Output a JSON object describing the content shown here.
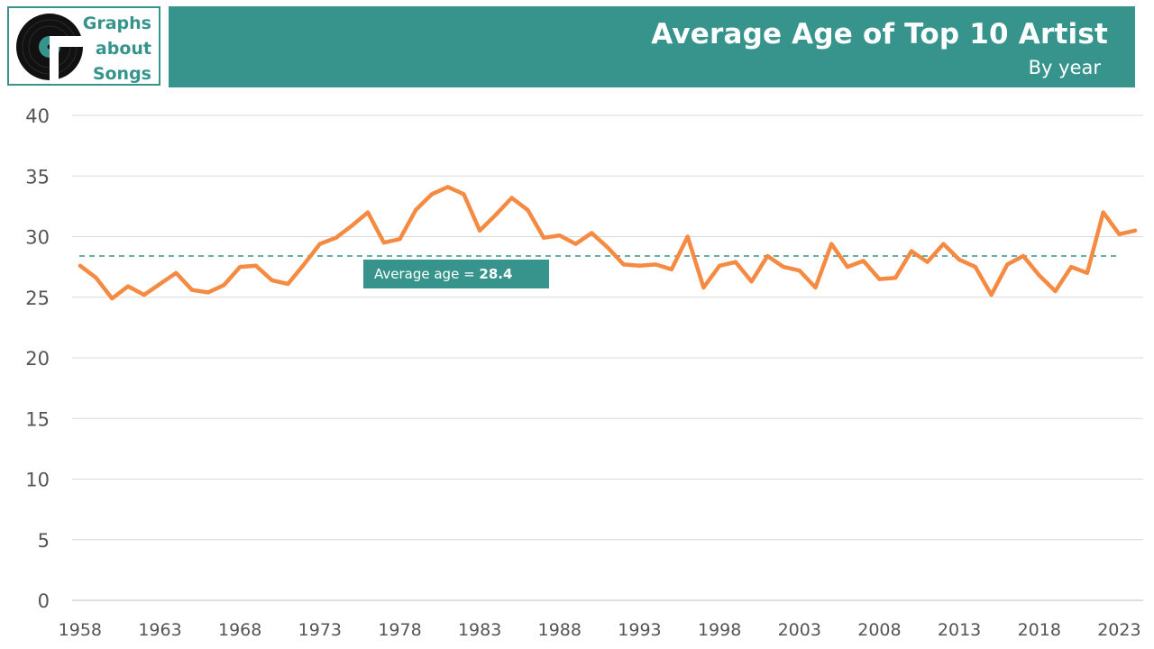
{
  "logo": {
    "lines": [
      "Graphs",
      "about",
      "Songs"
    ]
  },
  "header": {
    "title": "Average Age of Top 10 Artist",
    "subtitle": "By year"
  },
  "annotation": {
    "text": "Average age = ",
    "value": "28.4"
  },
  "colors": {
    "brand": "#36948c",
    "line": "#f58b43",
    "grid": "#d9d9d9"
  },
  "chart_data": {
    "type": "line",
    "title": "Average Age of Top 10 Artist",
    "subtitle": "By year",
    "xlabel": "",
    "ylabel": "",
    "ylim": [
      0,
      40
    ],
    "yticks": [
      0,
      5,
      10,
      15,
      20,
      25,
      30,
      35,
      40
    ],
    "xticks": [
      1958,
      1963,
      1968,
      1973,
      1978,
      1983,
      1988,
      1993,
      1998,
      2003,
      2008,
      2013,
      2018,
      2023
    ],
    "grid": true,
    "reference_line": {
      "value": 28.4,
      "style": "dashed"
    },
    "x": [
      1958,
      1959,
      1960,
      1961,
      1962,
      1963,
      1964,
      1965,
      1966,
      1967,
      1968,
      1969,
      1970,
      1971,
      1972,
      1973,
      1974,
      1975,
      1976,
      1977,
      1978,
      1979,
      1980,
      1981,
      1982,
      1983,
      1984,
      1985,
      1986,
      1987,
      1988,
      1989,
      1990,
      1991,
      1992,
      1993,
      1994,
      1995,
      1996,
      1997,
      1998,
      1999,
      2000,
      2001,
      2002,
      2003,
      2004,
      2005,
      2006,
      2007,
      2008,
      2009,
      2010,
      2011,
      2012,
      2013,
      2014,
      2015,
      2016,
      2017,
      2018,
      2019,
      2020,
      2021,
      2022,
      2023,
      2024
    ],
    "series": [
      {
        "values": [
          27.6,
          26.6,
          24.9,
          25.9,
          25.2,
          26.1,
          27.0,
          25.6,
          25.4,
          26.0,
          27.5,
          27.6,
          26.4,
          26.1,
          27.7,
          29.4,
          29.9,
          30.9,
          32.0,
          29.5,
          29.8,
          32.2,
          33.5,
          34.1,
          33.5,
          30.5,
          31.8,
          33.2,
          32.2,
          29.9,
          30.1,
          29.4,
          30.3,
          29.1,
          27.7,
          27.6,
          27.7,
          27.3,
          30.0,
          25.8,
          27.6,
          27.9,
          26.3,
          28.4,
          27.5,
          27.2,
          25.8,
          29.4,
          27.5,
          28.0,
          26.5,
          26.6,
          28.8,
          27.9,
          29.4,
          28.1,
          27.5,
          25.2,
          27.7,
          28.4,
          26.8,
          25.5,
          27.5,
          27.0,
          32.0,
          30.2,
          30.5
        ]
      }
    ]
  }
}
